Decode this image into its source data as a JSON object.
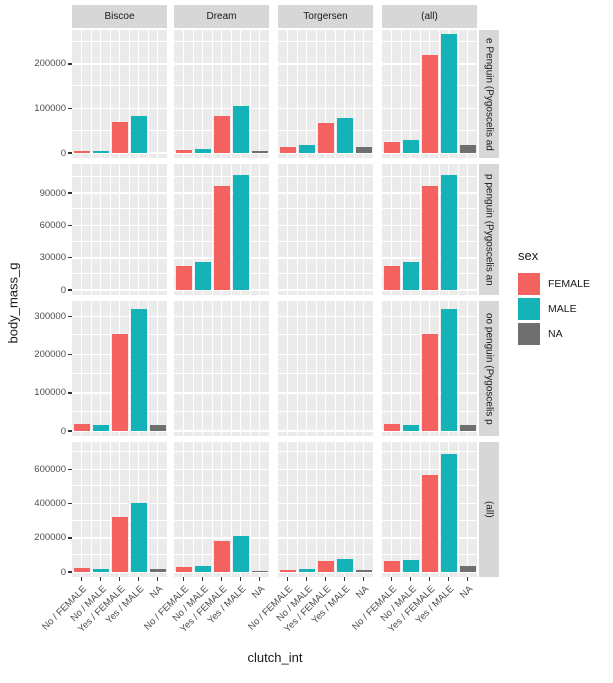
{
  "figure": {
    "panel_bg": "#EBEBEB",
    "strip_bg": "#D7D7D7",
    "grid_color": "#FFFFFF",
    "tick_color": "#333333",
    "tick_label_color": "#4D4D4D",
    "text_color": "#1A1A1A"
  },
  "chart_data": {
    "type": "bar",
    "title": "",
    "xlabel": "clutch_int",
    "ylabel": "body_mass_g",
    "grid": true,
    "facet_columns": [
      "Biscoe",
      "Dream",
      "Torgersen",
      "(all)"
    ],
    "categories": [
      "No / FEMALE",
      "No / MALE",
      "Yes / FEMALE",
      "Yes / MALE",
      "NA"
    ],
    "category_colors": [
      "#F4625F",
      "#15B2B7",
      "#F4625F",
      "#15B2B7",
      "#6F6F6F"
    ],
    "legend": {
      "title": "sex",
      "position": "right",
      "items": [
        {
          "label": "FEMALE",
          "color": "#F4625F"
        },
        {
          "label": "MALE",
          "color": "#15B2B7"
        },
        {
          "label": "NA",
          "color": "#6F6F6F"
        }
      ]
    },
    "rows": [
      {
        "strip": "e Penguin (Pygoscelis ad",
        "ticks": [
          0,
          100000,
          200000
        ],
        "minor_ticks": [
          50000,
          150000,
          250000
        ],
        "ymax": 276000,
        "values": {
          "Biscoe": [
            3500,
            4000,
            70000,
            84000,
            0
          ],
          "Dream": [
            7500,
            9000,
            83000,
            105500,
            4500
          ],
          "Torgersen": [
            13000,
            17000,
            67000,
            78000,
            14000
          ],
          "(all)": [
            24000,
            30000,
            220000,
            267500,
            18500
          ]
        }
      },
      {
        "strip": "p penguin (Pygoscelis an",
        "ticks": [
          0,
          30000,
          60000,
          90000
        ],
        "minor_ticks": [
          15000,
          45000,
          75000,
          105000
        ],
        "ymax": 117000,
        "values": {
          "Biscoe": [
            0,
            0,
            0,
            0,
            0
          ],
          "Dream": [
            22000,
            26000,
            97000,
            107000,
            0
          ],
          "Torgersen": [
            0,
            0,
            0,
            0,
            0
          ],
          "(all)": [
            22000,
            26000,
            97000,
            107000,
            0
          ]
        }
      },
      {
        "strip": "oo penguin (Pygoscelis p",
        "ticks": [
          0,
          100000,
          200000,
          300000
        ],
        "minor_ticks": [
          50000,
          150000,
          250000
        ],
        "ymax": 340000,
        "values": {
          "Biscoe": [
            18000,
            15000,
            253000,
            318000,
            17000
          ],
          "Dream": [
            0,
            0,
            0,
            0,
            0
          ],
          "Torgersen": [
            0,
            0,
            0,
            0,
            0
          ],
          "(all)": [
            18000,
            15000,
            253000,
            318000,
            17000
          ]
        }
      },
      {
        "strip": "(all)",
        "ticks": [
          0,
          200000,
          400000,
          600000
        ],
        "minor_ticks": [
          100000,
          300000,
          500000,
          700000
        ],
        "ymax": 760000,
        "values": {
          "Biscoe": [
            21500,
            19000,
            323000,
            402000,
            17000
          ],
          "Dream": [
            29500,
            35000,
            180000,
            212500,
            4500
          ],
          "Torgersen": [
            13000,
            17000,
            67000,
            78000,
            14000
          ],
          "(all)": [
            64000,
            71000,
            570000,
            692500,
            35500
          ]
        }
      }
    ]
  }
}
